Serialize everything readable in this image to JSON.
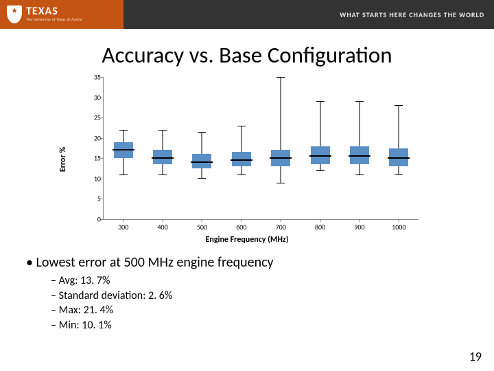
{
  "header": {
    "logo_text": "TEXAS",
    "logo_sub": "The University of Texas at Austin",
    "tagline": "WHAT STARTS HERE CHANGES THE WORLD",
    "left_bg": "#c35413",
    "right_bg": "#333333"
  },
  "title": "Accuracy vs. Base Configuration",
  "chart": {
    "type": "boxplot",
    "xlabel": "Engine Frequency (MHz)",
    "ylabel": "Error %",
    "label_fontsize": 12,
    "tick_fontsize": 10,
    "ylim": [
      0,
      35
    ],
    "ytick_step": 5,
    "categories": [
      "300",
      "400",
      "500",
      "600",
      "700",
      "800",
      "900",
      "1000"
    ],
    "box_color": "#5a8fc6",
    "median_color": "#000000",
    "whisker_color": "#000000",
    "background_color": "#ffffff",
    "boxes": [
      {
        "q1": 15,
        "median": 17,
        "q3": 19,
        "min": 11,
        "max": 22
      },
      {
        "q1": 13.5,
        "median": 15,
        "q3": 17,
        "min": 11,
        "max": 22
      },
      {
        "q1": 12.5,
        "median": 14,
        "q3": 16,
        "min": 10.1,
        "max": 21.4
      },
      {
        "q1": 13,
        "median": 14.5,
        "q3": 16.5,
        "min": 11,
        "max": 23
      },
      {
        "q1": 13,
        "median": 15,
        "q3": 17,
        "min": 9,
        "max": 35
      },
      {
        "q1": 13.5,
        "median": 15.5,
        "q3": 18,
        "min": 12,
        "max": 29
      },
      {
        "q1": 13.5,
        "median": 15.5,
        "q3": 18,
        "min": 11,
        "max": 29
      },
      {
        "q1": 13,
        "median": 15,
        "q3": 17.5,
        "min": 11,
        "max": 28
      }
    ]
  },
  "bullets": {
    "level1": "Lowest error at 500 MHz engine frequency",
    "level2": [
      "Avg: 13. 7%",
      "Standard deviation:  2. 6%",
      "Max: 21. 4%",
      "Min: 10. 1%"
    ]
  },
  "page_number": "19"
}
